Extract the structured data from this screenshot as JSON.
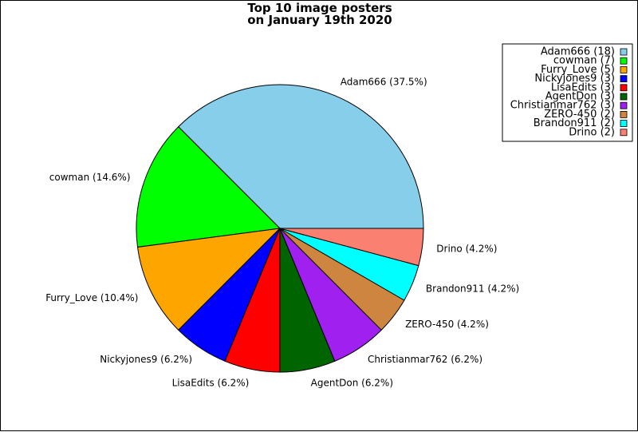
{
  "chart_data": {
    "type": "pie",
    "title_lines": [
      "Top 10 image posters",
      "on January 19th 2020"
    ],
    "slices": [
      {
        "name": "Adam666",
        "count": 18,
        "percent_label": "37.5%",
        "color": "#87ceeb"
      },
      {
        "name": "cowman",
        "count": 7,
        "percent_label": "14.6%",
        "color": "#00ff00"
      },
      {
        "name": "Furry_Love",
        "count": 5,
        "percent_label": "10.4%",
        "color": "#ffa500"
      },
      {
        "name": "Nickyjones9",
        "count": 3,
        "percent_label": "6.2%",
        "color": "#0000ff"
      },
      {
        "name": "LisaEdits",
        "count": 3,
        "percent_label": "6.2%",
        "color": "#ff0000"
      },
      {
        "name": "AgentDon",
        "count": 3,
        "percent_label": "6.2%",
        "color": "#006400"
      },
      {
        "name": "Christianmar762",
        "count": 3,
        "percent_label": "6.2%",
        "color": "#a020f0"
      },
      {
        "name": "ZERO-450",
        "count": 2,
        "percent_label": "4.2%",
        "color": "#cd853f"
      },
      {
        "name": "Brandon911",
        "count": 2,
        "percent_label": "4.2%",
        "color": "#00ffff"
      },
      {
        "name": "Drino",
        "count": 2,
        "percent_label": "4.2%",
        "color": "#fa8072"
      }
    ],
    "start_angle_deg": 0,
    "direction": "counterclockwise",
    "legend_position": "top-right",
    "edge_color": "#000000"
  }
}
